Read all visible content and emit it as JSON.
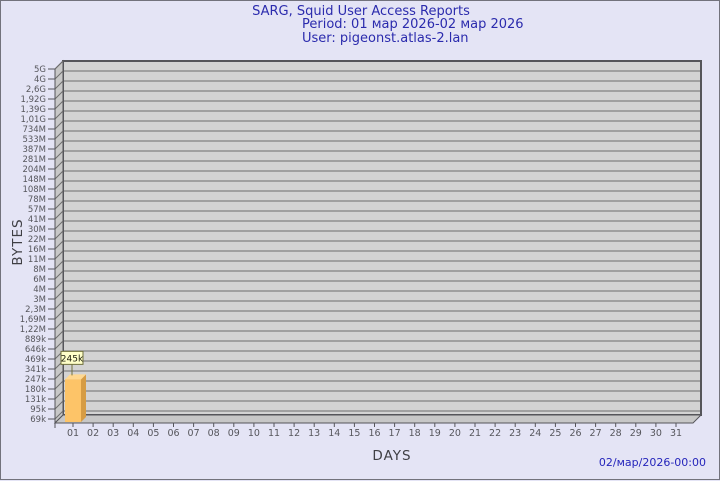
{
  "header": {
    "title": "SARG, Squid User Access Reports",
    "period": "Period: 01 мар 2026-02 мар 2026",
    "user": "User: pigeonst.atlas-2.lan"
  },
  "footer": {
    "timestamp": "02/мар/2026-00:00"
  },
  "colors": {
    "page_bg": "#e4e4f5",
    "frame_border": "#72727c",
    "title_text": "#2b2bad",
    "plot_bg": "#d3d3d3",
    "wall_bg": "#c7c7c7",
    "grid_line": "#6e6e6e",
    "plot_border": "#55555a",
    "axis_tick_text": "#56565c",
    "axis_title_text": "#3f3f44",
    "bar_face": "#fdc468",
    "bar_side": "#d69c44",
    "bar_top": "#ffd890",
    "value_box_bg": "#ffffc9",
    "value_box_border": "#70703c",
    "value_box_text": "#222211",
    "footer_text": "#2525bb"
  },
  "chart_data": {
    "type": "bar",
    "projection": "3d",
    "title": "SARG, Squid User Access Reports",
    "subtitle_period": "Period: 01 мар 2026-02 мар 2026",
    "subtitle_user": "User: pigeonst.atlas-2.lan",
    "xlabel": "DAYS",
    "ylabel": "BYTES",
    "y_scale": "log",
    "y_axis_max": 5000000000,
    "y_axis_min": 69000,
    "y_tick_labels": [
      "5G",
      "4G",
      "2,6G",
      "1,92G",
      "1,39G",
      "1,01G",
      "734M",
      "533M",
      "387M",
      "281M",
      "204M",
      "148M",
      "108M",
      "78M",
      "57M",
      "41M",
      "30M",
      "22M",
      "16M",
      "11M",
      "8M",
      "6M",
      "4M",
      "3M",
      "2,3M",
      "1,69M",
      "1,22M",
      "889k",
      "646k",
      "469k",
      "341k",
      "247k",
      "180k",
      "131k",
      "95k",
      "69k"
    ],
    "categories": [
      "01",
      "02",
      "03",
      "04",
      "05",
      "06",
      "07",
      "08",
      "09",
      "10",
      "11",
      "12",
      "13",
      "14",
      "15",
      "16",
      "17",
      "18",
      "19",
      "20",
      "21",
      "22",
      "23",
      "24",
      "25",
      "26",
      "27",
      "28",
      "29",
      "30",
      "31"
    ],
    "values": [
      245000,
      0,
      0,
      0,
      0,
      0,
      0,
      0,
      0,
      0,
      0,
      0,
      0,
      0,
      0,
      0,
      0,
      0,
      0,
      0,
      0,
      0,
      0,
      0,
      0,
      0,
      0,
      0,
      0,
      0,
      0
    ],
    "bar_labels": [
      {
        "index": 0,
        "label": "245k"
      }
    ],
    "grid": "horizontal",
    "legend": "none"
  }
}
